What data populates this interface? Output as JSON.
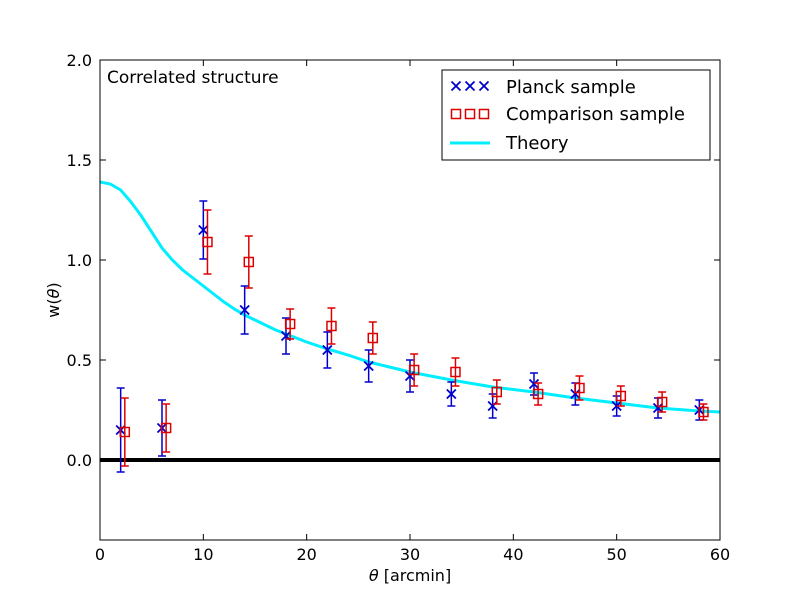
{
  "chart_data": {
    "type": "scatter",
    "title": "",
    "annotation": "Correlated structure",
    "xlabel_symbol": "θ",
    "xlabel_rest": " [arcmin]",
    "ylabel_prefix": "w(",
    "ylabel_symbol": "θ",
    "ylabel_suffix": ")",
    "xlim": [
      0,
      60
    ],
    "ylim": [
      -0.4,
      2.0
    ],
    "xticks": [
      0,
      10,
      20,
      30,
      40,
      50,
      60
    ],
    "yticks": [
      0.0,
      0.5,
      1.0,
      1.5,
      2.0
    ],
    "xtick_labels": [
      "0",
      "10",
      "20",
      "30",
      "40",
      "50",
      "60"
    ],
    "ytick_labels": [
      "0.0",
      "0.5",
      "1.0",
      "1.5",
      "2.0"
    ],
    "grid": false,
    "legend_position": "top-right",
    "reference_line": {
      "y": 0.0,
      "color": "#000000"
    },
    "series": [
      {
        "name": "Planck sample",
        "marker": "x",
        "color": "#0000cc",
        "points": [
          {
            "x": 2.0,
            "y": 0.15,
            "err": 0.21
          },
          {
            "x": 6.0,
            "y": 0.16,
            "err": 0.14
          },
          {
            "x": 10.0,
            "y": 1.15,
            "err": 0.145
          },
          {
            "x": 14.0,
            "y": 0.75,
            "err": 0.12
          },
          {
            "x": 18.0,
            "y": 0.62,
            "err": 0.09
          },
          {
            "x": 22.0,
            "y": 0.55,
            "err": 0.09
          },
          {
            "x": 26.0,
            "y": 0.47,
            "err": 0.08
          },
          {
            "x": 30.0,
            "y": 0.42,
            "err": 0.08
          },
          {
            "x": 34.0,
            "y": 0.33,
            "err": 0.06
          },
          {
            "x": 38.0,
            "y": 0.27,
            "err": 0.06
          },
          {
            "x": 42.0,
            "y": 0.38,
            "err": 0.055
          },
          {
            "x": 46.0,
            "y": 0.33,
            "err": 0.055
          },
          {
            "x": 50.0,
            "y": 0.27,
            "err": 0.05
          },
          {
            "x": 54.0,
            "y": 0.26,
            "err": 0.05
          },
          {
            "x": 58.0,
            "y": 0.25,
            "err": 0.05
          }
        ]
      },
      {
        "name": "Comparison sample",
        "marker": "square",
        "color": "#dd0000",
        "points": [
          {
            "x": 2.4,
            "y": 0.14,
            "err": 0.17
          },
          {
            "x": 6.4,
            "y": 0.16,
            "err": 0.12
          },
          {
            "x": 10.4,
            "y": 1.09,
            "err": 0.16
          },
          {
            "x": 14.4,
            "y": 0.99,
            "err": 0.13
          },
          {
            "x": 18.4,
            "y": 0.68,
            "err": 0.075
          },
          {
            "x": 22.4,
            "y": 0.67,
            "err": 0.09
          },
          {
            "x": 26.4,
            "y": 0.61,
            "err": 0.08
          },
          {
            "x": 30.4,
            "y": 0.45,
            "err": 0.08
          },
          {
            "x": 34.4,
            "y": 0.44,
            "err": 0.07
          },
          {
            "x": 38.4,
            "y": 0.34,
            "err": 0.06
          },
          {
            "x": 42.4,
            "y": 0.33,
            "err": 0.055
          },
          {
            "x": 46.4,
            "y": 0.36,
            "err": 0.06
          },
          {
            "x": 50.4,
            "y": 0.32,
            "err": 0.05
          },
          {
            "x": 54.4,
            "y": 0.29,
            "err": 0.05
          },
          {
            "x": 58.4,
            "y": 0.24,
            "err": 0.04
          }
        ]
      },
      {
        "name": "Theory",
        "marker": "line",
        "color": "#00eeff",
        "points": [
          {
            "x": 0,
            "y": 1.39
          },
          {
            "x": 1,
            "y": 1.38
          },
          {
            "x": 2,
            "y": 1.35
          },
          {
            "x": 3,
            "y": 1.29
          },
          {
            "x": 4,
            "y": 1.22
          },
          {
            "x": 5,
            "y": 1.14
          },
          {
            "x": 6,
            "y": 1.06
          },
          {
            "x": 7,
            "y": 1.0
          },
          {
            "x": 8,
            "y": 0.95
          },
          {
            "x": 9,
            "y": 0.91
          },
          {
            "x": 10,
            "y": 0.87
          },
          {
            "x": 11,
            "y": 0.83
          },
          {
            "x": 12,
            "y": 0.79
          },
          {
            "x": 13,
            "y": 0.755
          },
          {
            "x": 14,
            "y": 0.725
          },
          {
            "x": 15,
            "y": 0.7
          },
          {
            "x": 16,
            "y": 0.675
          },
          {
            "x": 17,
            "y": 0.65
          },
          {
            "x": 18,
            "y": 0.63
          },
          {
            "x": 20,
            "y": 0.59
          },
          {
            "x": 22,
            "y": 0.555
          },
          {
            "x": 24,
            "y": 0.525
          },
          {
            "x": 26,
            "y": 0.49
          },
          {
            "x": 28,
            "y": 0.465
          },
          {
            "x": 30,
            "y": 0.44
          },
          {
            "x": 34,
            "y": 0.4
          },
          {
            "x": 38,
            "y": 0.365
          },
          {
            "x": 42,
            "y": 0.34
          },
          {
            "x": 46,
            "y": 0.31
          },
          {
            "x": 50,
            "y": 0.285
          },
          {
            "x": 54,
            "y": 0.26
          },
          {
            "x": 58,
            "y": 0.245
          },
          {
            "x": 60,
            "y": 0.24
          }
        ]
      }
    ]
  }
}
